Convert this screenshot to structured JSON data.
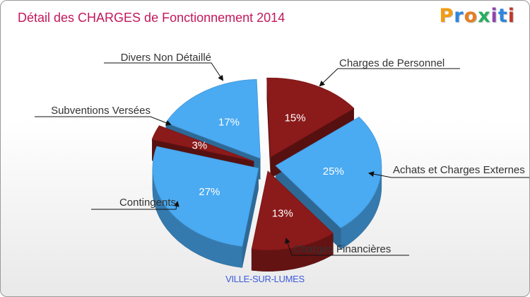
{
  "header": {
    "title": "Détail des CHARGES de Fonctionnement 2014",
    "logo_text": "Proxiti"
  },
  "footer": {
    "city": "VILLE-SUR-LUMES"
  },
  "chart_data": {
    "type": "pie",
    "title": "Détail des CHARGES de Fonctionnement 2014",
    "subtitle": "VILLE-SUR-LUMES",
    "unit": "%",
    "slices": [
      {
        "label": "Charges de Personnel",
        "value": 15,
        "pct_label": "15%",
        "color": "#8b1a1a"
      },
      {
        "label": "Achats et Charges Externes",
        "value": 25,
        "pct_label": "25%",
        "color": "#4aaaf2"
      },
      {
        "label": "Charges Financières",
        "value": 13,
        "pct_label": "13%",
        "color": "#8b1a1a"
      },
      {
        "label": "Contingents",
        "value": 27,
        "pct_label": "27%",
        "color": "#4aaaf2"
      },
      {
        "label": "Subventions Versées",
        "value": 3,
        "pct_label": "3%",
        "color": "#8b1a1a"
      },
      {
        "label": "Divers Non Détaillé",
        "value": 17,
        "pct_label": "17%",
        "color": "#4aaaf2"
      }
    ]
  }
}
